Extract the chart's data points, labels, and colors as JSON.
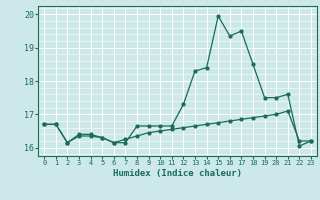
{
  "xlabel": "Humidex (Indice chaleur)",
  "bg_color": "#cce8e8",
  "grid_color": "#ffffff",
  "line_color": "#1a6b5a",
  "xlim": [
    -0.5,
    23.5
  ],
  "ylim": [
    15.75,
    20.25
  ],
  "xticks": [
    0,
    1,
    2,
    3,
    4,
    5,
    6,
    7,
    8,
    9,
    10,
    11,
    12,
    13,
    14,
    15,
    16,
    17,
    18,
    19,
    20,
    21,
    22,
    23
  ],
  "yticks": [
    16,
    17,
    18,
    19,
    20
  ],
  "curve1_x": [
    0,
    1,
    2,
    3,
    4,
    5,
    6,
    7,
    8,
    9,
    10,
    11,
    12,
    13,
    14,
    15,
    16,
    17,
    18,
    19,
    20,
    21,
    22,
    23
  ],
  "curve1_y": [
    16.7,
    16.7,
    16.15,
    16.4,
    16.4,
    16.3,
    16.15,
    16.15,
    16.65,
    16.65,
    16.65,
    16.65,
    17.3,
    18.3,
    18.4,
    19.95,
    19.35,
    19.5,
    18.5,
    17.5,
    17.5,
    17.6,
    16.05,
    16.2
  ],
  "curve2_x": [
    0,
    1,
    2,
    3,
    4,
    5,
    6,
    7,
    8,
    9,
    10,
    11,
    12,
    13,
    14,
    15,
    16,
    17,
    18,
    19,
    20,
    21,
    22,
    23
  ],
  "curve2_y": [
    16.7,
    16.7,
    16.15,
    16.35,
    16.35,
    16.3,
    16.15,
    16.25,
    16.35,
    16.45,
    16.5,
    16.55,
    16.6,
    16.65,
    16.7,
    16.75,
    16.8,
    16.85,
    16.9,
    16.95,
    17.0,
    17.1,
    16.2,
    16.2
  ]
}
